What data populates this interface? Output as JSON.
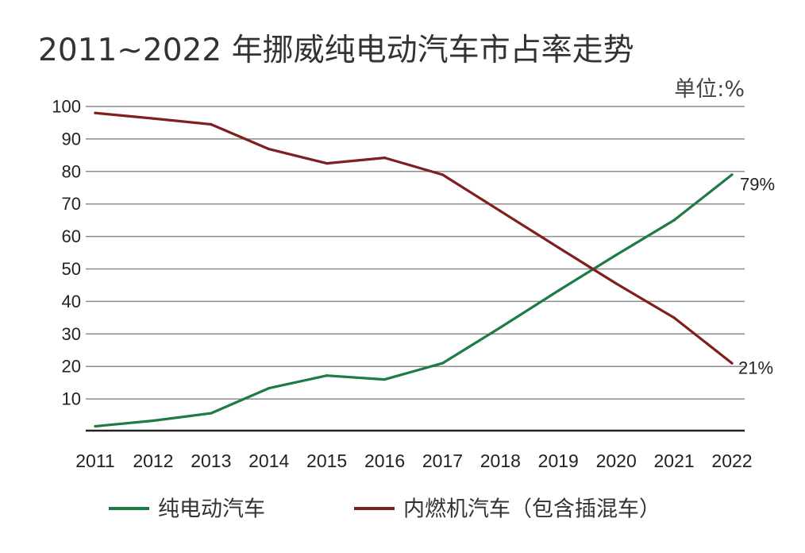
{
  "chart_data": {
    "type": "line",
    "title": "2011~2022 年挪威纯电动汽车市占率走势",
    "unit_label": "单位:%",
    "categories": [
      "2011",
      "2012",
      "2013",
      "2014",
      "2015",
      "2016",
      "2017",
      "2018",
      "2019",
      "2020",
      "2021",
      "2022"
    ],
    "yticks": [
      100,
      90,
      80,
      70,
      60,
      50,
      40,
      30,
      20,
      10
    ],
    "ylim": [
      0,
      100
    ],
    "grid": true,
    "legend_position": "bottom",
    "series": [
      {
        "name": "纯电动汽车",
        "color": "#1e7b45",
        "values": [
          1.6,
          3.3,
          5.6,
          13.3,
          17.2,
          16.0,
          21.0,
          32.0,
          43.3,
          54.3,
          65.0,
          79.0
        ],
        "end_label": "79%"
      },
      {
        "name": "内燃机汽车（包含插混车）",
        "color": "#7f1f1f",
        "values": [
          98.0,
          96.3,
          94.5,
          86.9,
          82.5,
          84.2,
          79.0,
          67.8,
          56.6,
          45.5,
          35.0,
          21.0
        ],
        "end_label": "21%"
      }
    ]
  }
}
